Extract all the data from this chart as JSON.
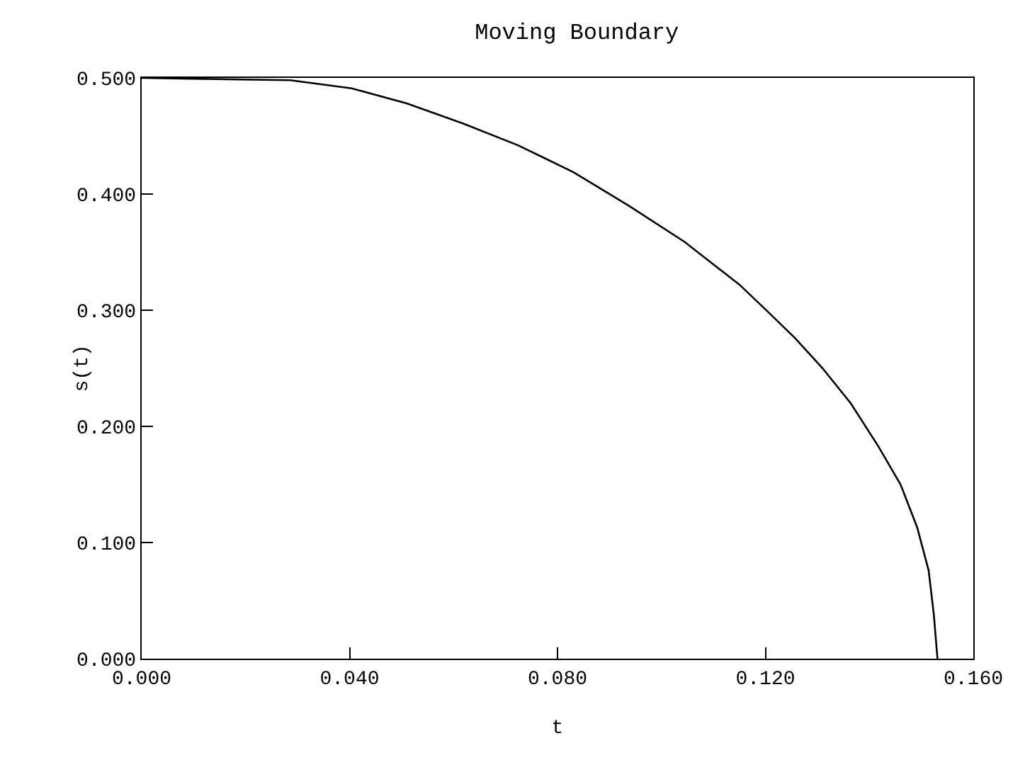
{
  "chart_data": {
    "type": "line",
    "title": "Moving Boundary",
    "xlabel": "t",
    "ylabel": "s(t)",
    "x": [
      0,
      0.0286,
      0.0404,
      0.051,
      0.0617,
      0.0724,
      0.083,
      0.0937,
      0.1044,
      0.115,
      0.1204,
      0.1257,
      0.131,
      0.1364,
      0.1417,
      0.146,
      0.1492,
      0.1514,
      0.1524,
      0.1531
    ],
    "series": [
      {
        "color": "#000000",
        "values": [
          0.5,
          0.498,
          0.491,
          0.478,
          0.461,
          0.442,
          0.419,
          0.39,
          0.359,
          0.322,
          0.299,
          0.276,
          0.25,
          0.22,
          0.183,
          0.15,
          0.113,
          0.076,
          0.038,
          0
        ]
      }
    ],
    "xlim": [
      0,
      0.16
    ],
    "xticks": [
      {
        "value": 0,
        "label": "0.000"
      },
      {
        "value": 0.04,
        "label": "0.040"
      },
      {
        "value": 0.08,
        "label": "0.080"
      },
      {
        "value": 0.12,
        "label": "0.120"
      },
      {
        "value": 0.16,
        "label": "0.160"
      }
    ],
    "ylim": [
      0,
      0.5
    ],
    "yticks": [
      {
        "value": 0,
        "label": "0.000"
      },
      {
        "value": 0.1,
        "label": "0.100"
      },
      {
        "value": 0.2,
        "label": "0.200"
      },
      {
        "value": 0.3,
        "label": "0.300"
      },
      {
        "value": 0.4,
        "label": "0.400"
      },
      {
        "value": 0.5,
        "label": "0.500"
      }
    ],
    "grid": false,
    "marker": "none",
    "line_style": "solid"
  }
}
